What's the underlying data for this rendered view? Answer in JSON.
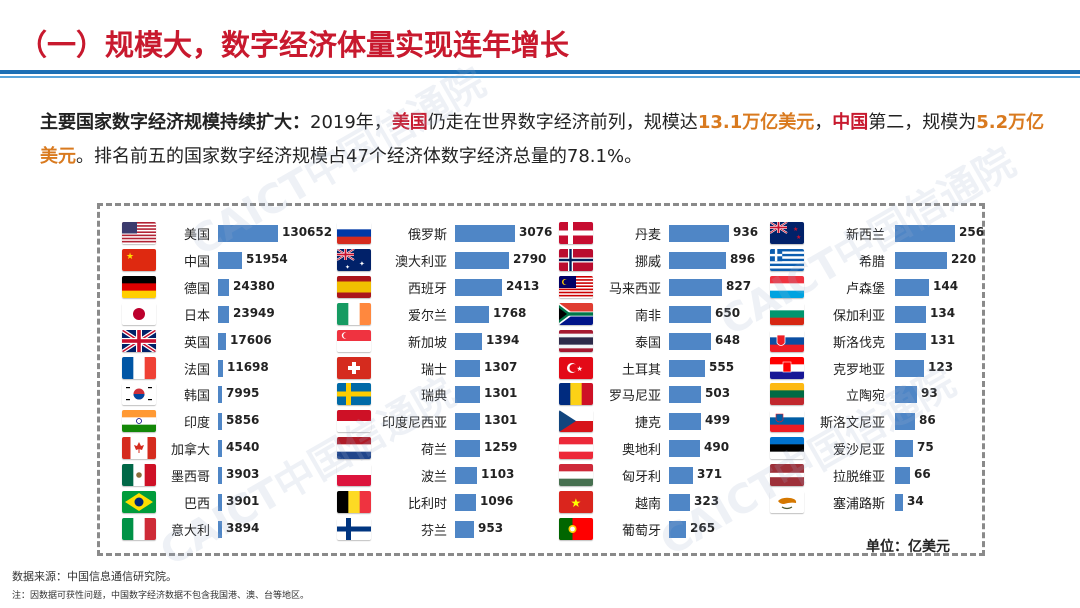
{
  "title": "（一）规模大，数字经济体量实现连年增长",
  "intro": {
    "lead": "主要国家数字经济规模持续扩大：",
    "t1": "2019年，",
    "us": "美国",
    "t2": "仍走在世界数字经济前列，规模达",
    "us_value": "13.1万亿美元",
    "t3": "，",
    "cn": "中国",
    "t4": "第二，规模为",
    "cn_value": "5.2万亿美元",
    "t5": "。排名前五的国家数字经济规模占47个经济体数字经济总量的78.1%。"
  },
  "watermark": "CAICT中国信通院",
  "unit_label": "单位：亿美元",
  "source": "数据来源：中国信息通信研究院。",
  "note": "注：因数据可获性问题，中国数字经济数据不包含我国港、澳、台等地区。",
  "chart_data": {
    "type": "bar",
    "orientation": "horizontal",
    "unit": "亿美元",
    "max": 130652,
    "columns": [
      [
        {
          "name": "美国",
          "value": 130652,
          "flag": "us"
        },
        {
          "name": "中国",
          "value": 51954,
          "flag": "cn"
        },
        {
          "name": "德国",
          "value": 24380,
          "flag": "de"
        },
        {
          "name": "日本",
          "value": 23949,
          "flag": "jp"
        },
        {
          "name": "英国",
          "value": 17606,
          "flag": "gb"
        },
        {
          "name": "法国",
          "value": 11698,
          "flag": "fr"
        },
        {
          "name": "韩国",
          "value": 7995,
          "flag": "kr"
        },
        {
          "name": "印度",
          "value": 5856,
          "flag": "in"
        },
        {
          "name": "加拿大",
          "value": 4540,
          "flag": "ca"
        },
        {
          "name": "墨西哥",
          "value": 3903,
          "flag": "mx"
        },
        {
          "name": "巴西",
          "value": 3901,
          "flag": "br"
        },
        {
          "name": "意大利",
          "value": 3894,
          "flag": "it"
        }
      ],
      [
        {
          "name": "俄罗斯",
          "value": 3076,
          "flag": "ru"
        },
        {
          "name": "澳大利亚",
          "value": 2790,
          "flag": "au"
        },
        {
          "name": "西班牙",
          "value": 2413,
          "flag": "es"
        },
        {
          "name": "爱尔兰",
          "value": 1768,
          "flag": "ie"
        },
        {
          "name": "新加坡",
          "value": 1394,
          "flag": "sg"
        },
        {
          "name": "瑞士",
          "value": 1307,
          "flag": "ch"
        },
        {
          "name": "瑞典",
          "value": 1301,
          "flag": "se"
        },
        {
          "name": "印度尼西亚",
          "value": 1301,
          "flag": "id"
        },
        {
          "name": "荷兰",
          "value": 1259,
          "flag": "nl"
        },
        {
          "name": "波兰",
          "value": 1103,
          "flag": "pl"
        },
        {
          "name": "比利时",
          "value": 1096,
          "flag": "be"
        },
        {
          "name": "芬兰",
          "value": 953,
          "flag": "fi"
        }
      ],
      [
        {
          "name": "丹麦",
          "value": 936,
          "flag": "dk"
        },
        {
          "name": "挪威",
          "value": 896,
          "flag": "no"
        },
        {
          "name": "马来西亚",
          "value": 827,
          "flag": "my"
        },
        {
          "name": "南非",
          "value": 650,
          "flag": "za"
        },
        {
          "name": "泰国",
          "value": 648,
          "flag": "th"
        },
        {
          "name": "土耳其",
          "value": 555,
          "flag": "tr"
        },
        {
          "name": "罗马尼亚",
          "value": 503,
          "flag": "ro"
        },
        {
          "name": "捷克",
          "value": 499,
          "flag": "cz"
        },
        {
          "name": "奥地利",
          "value": 490,
          "flag": "at"
        },
        {
          "name": "匈牙利",
          "value": 371,
          "flag": "hu"
        },
        {
          "name": "越南",
          "value": 323,
          "flag": "vn"
        },
        {
          "name": "葡萄牙",
          "value": 265,
          "flag": "pt"
        }
      ],
      [
        {
          "name": "新西兰",
          "value": 256,
          "flag": "nz"
        },
        {
          "name": "希腊",
          "value": 220,
          "flag": "gr"
        },
        {
          "name": "卢森堡",
          "value": 144,
          "flag": "lu"
        },
        {
          "name": "保加利亚",
          "value": 134,
          "flag": "bg"
        },
        {
          "name": "斯洛伐克",
          "value": 131,
          "flag": "sk"
        },
        {
          "name": "克罗地亚",
          "value": 123,
          "flag": "hr"
        },
        {
          "name": "立陶宛",
          "value": 93,
          "flag": "lt"
        },
        {
          "name": "斯洛文尼亚",
          "value": 86,
          "flag": "si"
        },
        {
          "name": "爱沙尼亚",
          "value": 75,
          "flag": "ee"
        },
        {
          "name": "拉脱维亚",
          "value": 66,
          "flag": "lv"
        },
        {
          "name": "塞浦路斯",
          "value": 34,
          "flag": "cy"
        }
      ]
    ]
  }
}
